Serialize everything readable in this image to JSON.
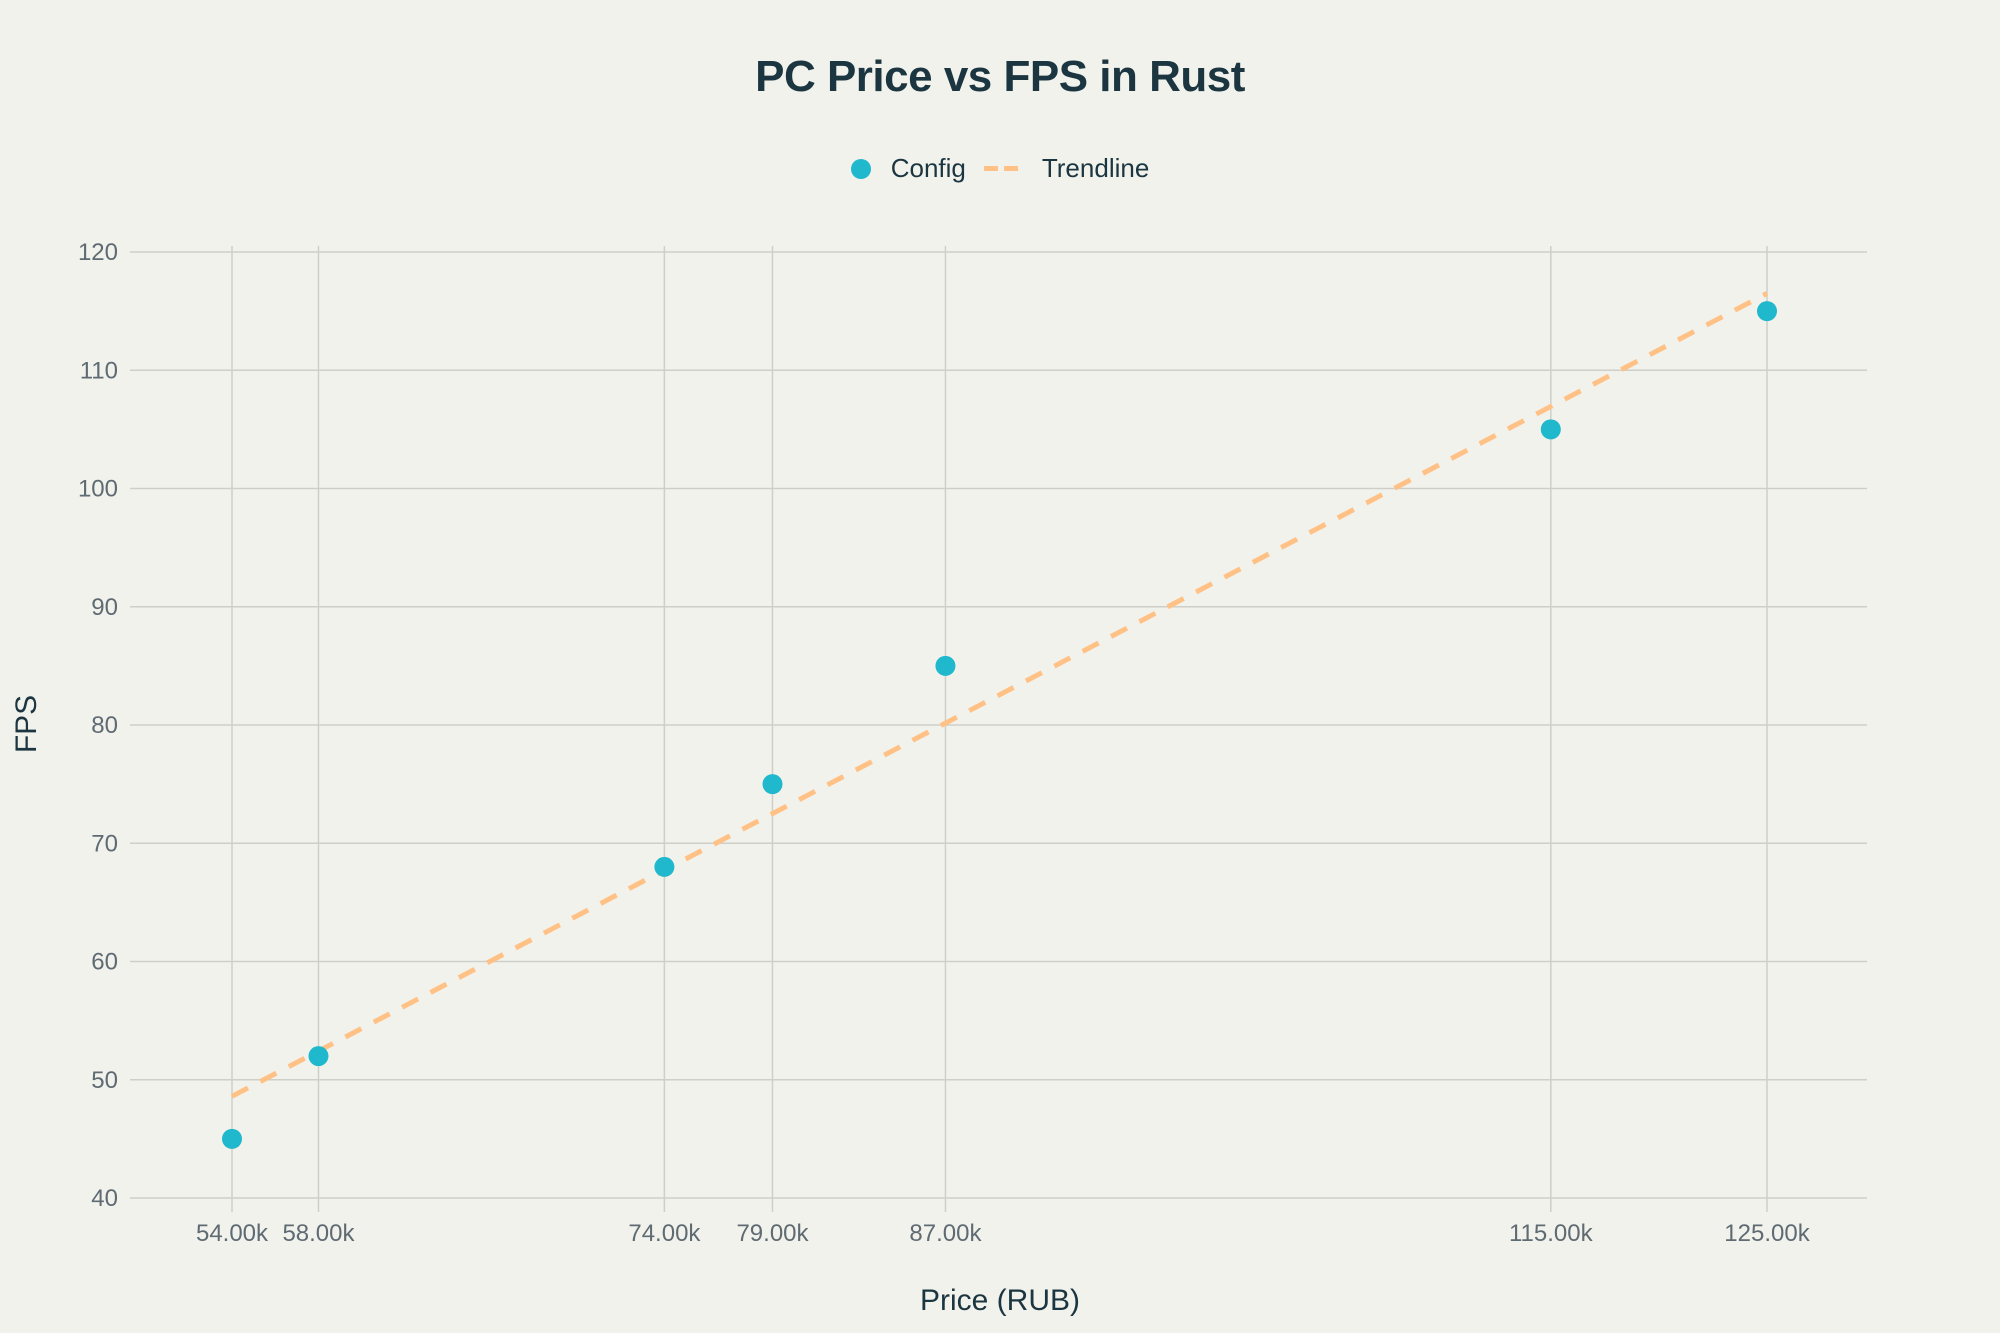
{
  "title": "PC Price vs FPS in Rust",
  "legend": {
    "items": [
      {
        "label": "Config",
        "type": "marker",
        "color": "#1fb8cd"
      },
      {
        "label": "Trendline",
        "type": "dash",
        "color": "#ffc185"
      }
    ]
  },
  "axes": {
    "x_title": "Price (RUB)",
    "y_title": "FPS",
    "x_ticks": [
      {
        "value": 54000,
        "label": "54.00k"
      },
      {
        "value": 58000,
        "label": "58.00k"
      },
      {
        "value": 74000,
        "label": "74.00k"
      },
      {
        "value": 79000,
        "label": "79.00k"
      },
      {
        "value": 87000,
        "label": "87.00k"
      },
      {
        "value": 115000,
        "label": "115.00k"
      },
      {
        "value": 125000,
        "label": "125.00k"
      }
    ],
    "y_ticks": [
      40,
      50,
      60,
      70,
      80,
      90,
      100,
      110,
      120
    ]
  },
  "colors": {
    "background": "#f2f2ed",
    "grid": "#d2d2cc",
    "marker": "#1fb8cd",
    "trendline": "#ffc185",
    "title": "#1b3640",
    "tick": "#5f6b72"
  },
  "chart_data": {
    "type": "scatter",
    "title": "PC Price vs FPS in Rust",
    "xlabel": "Price (RUB)",
    "ylabel": "FPS",
    "ylim": [
      40,
      120
    ],
    "xlim": [
      50400,
      128600
    ],
    "grid": true,
    "legend_position": "top-center",
    "series": [
      {
        "name": "Config",
        "mode": "markers",
        "x": [
          54000,
          58000,
          74000,
          79000,
          87000,
          115000,
          125000
        ],
        "y": [
          45,
          52,
          68,
          75,
          85,
          105,
          115
        ]
      },
      {
        "name": "Trendline",
        "mode": "lines-dashed",
        "x": [
          54000,
          125000
        ],
        "y": [
          48.6,
          116.5
        ]
      }
    ]
  }
}
